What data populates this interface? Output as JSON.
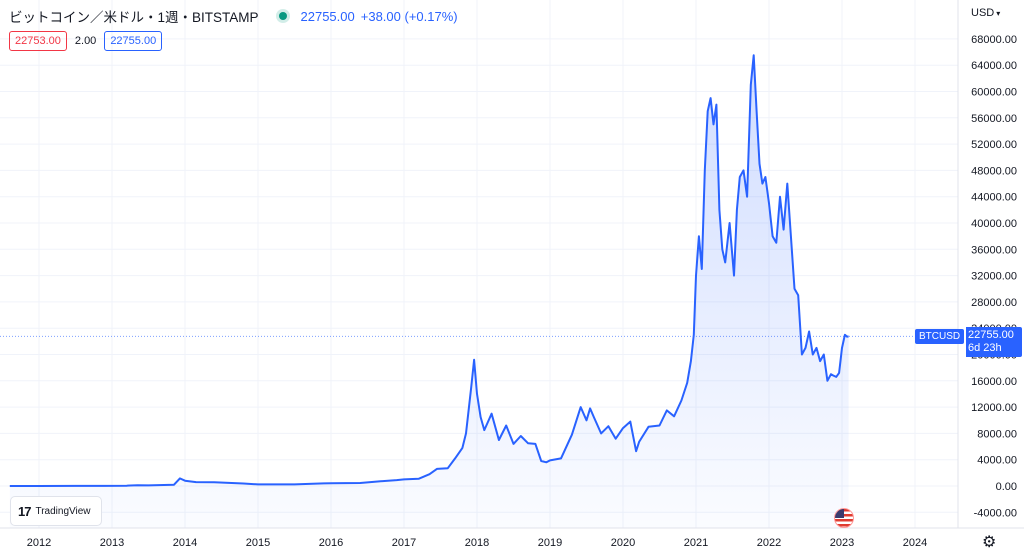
{
  "header": {
    "title": "ビットコイン／米ドル・1週・BITSTAMP",
    "last": "22755.00",
    "change": "+38.00 (+0.17%)",
    "sell": "22753.00",
    "spread": "2.00",
    "buy": "22755.00",
    "currency": "USD"
  },
  "price_label": {
    "symbol": "BTCUSD",
    "value": "22755.00",
    "countdown": "6d 23h"
  },
  "logo_text": "TradingView",
  "colors": {
    "line": "#2962ff",
    "fill_top": "#2962ff",
    "grid": "#f0f3fa",
    "axis_text": "#131722"
  },
  "chart_data": {
    "type": "area",
    "title": "ビットコイン／米ドル・1週・BITSTAMP",
    "xlabel": "",
    "ylabel": "",
    "x_ticks": [
      "2012",
      "2013",
      "2014",
      "2015",
      "2016",
      "2017",
      "2018",
      "2019",
      "2020",
      "2021",
      "2022",
      "2023",
      "2024"
    ],
    "y_ticks": [
      "68000.00",
      "64000.00",
      "60000.00",
      "56000.00",
      "52000.00",
      "48000.00",
      "44000.00",
      "40000.00",
      "36000.00",
      "32000.00",
      "28000.00",
      "24000.00",
      "20000.00",
      "16000.00",
      "12000.00",
      "8000.00",
      "4000.00",
      "0.00",
      "-4000.00"
    ],
    "xlim": [
      2011.6,
      2024.9
    ],
    "ylim": [
      -6000,
      70500
    ],
    "grid": true,
    "current_price": 22755,
    "series": [
      {
        "x": [
          2011.6,
          2012.0,
          2012.5,
          2012.9,
          2013.2,
          2013.35,
          2013.5,
          2013.85,
          2013.93,
          2014.0,
          2014.15,
          2014.4,
          2014.8,
          2015.0,
          2015.5,
          2015.9,
          2016.0,
          2016.4,
          2016.6,
          2016.9,
          2017.0,
          2017.2,
          2017.35,
          2017.45,
          2017.6,
          2017.7,
          2017.8,
          2017.85,
          2017.92,
          2017.96,
          2018.0,
          2018.05,
          2018.1,
          2018.2,
          2018.3,
          2018.4,
          2018.5,
          2018.6,
          2018.7,
          2018.8,
          2018.88,
          2018.95,
          2019.0,
          2019.15,
          2019.3,
          2019.42,
          2019.5,
          2019.55,
          2019.6,
          2019.7,
          2019.8,
          2019.9,
          2020.0,
          2020.1,
          2020.18,
          2020.22,
          2020.35,
          2020.5,
          2020.6,
          2020.7,
          2020.8,
          2020.88,
          2020.93,
          2020.97,
          2021.0,
          2021.04,
          2021.08,
          2021.12,
          2021.16,
          2021.2,
          2021.24,
          2021.28,
          2021.32,
          2021.36,
          2021.4,
          2021.46,
          2021.52,
          2021.56,
          2021.6,
          2021.65,
          2021.7,
          2021.75,
          2021.79,
          2021.83,
          2021.87,
          2021.91,
          2021.95,
          2022.0,
          2022.05,
          2022.1,
          2022.15,
          2022.2,
          2022.25,
          2022.3,
          2022.35,
          2022.4,
          2022.45,
          2022.5,
          2022.55,
          2022.6,
          2022.65,
          2022.7,
          2022.75,
          2022.8,
          2022.85,
          2022.88,
          2022.92,
          2022.96,
          2023.0,
          2023.04,
          2023.07,
          2023.09
        ],
        "y": [
          5,
          5,
          10,
          13,
          40,
          120,
          90,
          200,
          1150,
          800,
          600,
          580,
          380,
          250,
          240,
          400,
          430,
          450,
          650,
          900,
          1000,
          1100,
          1800,
          2600,
          2700,
          4200,
          5800,
          8000,
          15000,
          19200,
          14000,
          10500,
          8500,
          11000,
          7000,
          9200,
          6400,
          7600,
          6500,
          6400,
          3800,
          3600,
          3900,
          4200,
          7800,
          12000,
          10000,
          11800,
          10500,
          8000,
          9100,
          7200,
          8800,
          9800,
          5300,
          6700,
          9000,
          9200,
          11500,
          10600,
          13000,
          15700,
          19000,
          23000,
          32000,
          38000,
          33000,
          48000,
          57000,
          59000,
          55000,
          58000,
          42000,
          36000,
          34000,
          40000,
          32000,
          42000,
          47000,
          48000,
          44000,
          61000,
          65500,
          57000,
          49000,
          46000,
          47000,
          43000,
          38000,
          37000,
          44000,
          39000,
          46000,
          38000,
          30000,
          29000,
          20000,
          21000,
          23500,
          20000,
          21000,
          19000,
          20000,
          16000,
          17000,
          16800,
          16600,
          17200,
          21000,
          23000,
          22700,
          22755
        ]
      }
    ]
  }
}
